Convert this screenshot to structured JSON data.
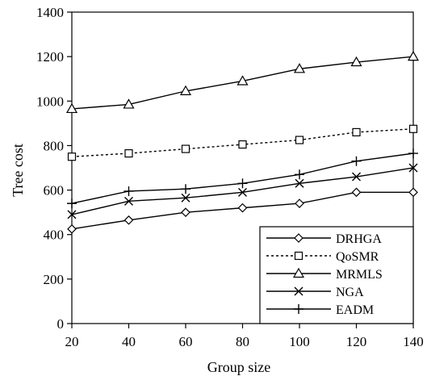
{
  "chart_data": {
    "type": "line",
    "title": "",
    "xlabel": "Group size",
    "ylabel": "Tree cost",
    "x": [
      20,
      40,
      60,
      80,
      100,
      120,
      140
    ],
    "xlim": [
      20,
      140
    ],
    "ylim": [
      0,
      1400
    ],
    "xticks": [
      "20",
      "40",
      "60",
      "80",
      "100",
      "120",
      "140"
    ],
    "yticks": [
      "0",
      "200",
      "400",
      "600",
      "800",
      "1000",
      "1200",
      "1400"
    ],
    "grid": false,
    "legend_position": "bottom-right",
    "series": [
      {
        "name": "DRHGA",
        "marker": "diamond",
        "dash": "solid",
        "values": [
          425,
          465,
          500,
          520,
          540,
          590,
          590
        ]
      },
      {
        "name": "QoSMR",
        "marker": "square",
        "dash": "dotted",
        "values": [
          750,
          765,
          785,
          805,
          825,
          860,
          875
        ]
      },
      {
        "name": "MRMLS",
        "marker": "triangle",
        "dash": "solid",
        "values": [
          965,
          985,
          1045,
          1090,
          1145,
          1175,
          1200
        ]
      },
      {
        "name": "NGA",
        "marker": "x",
        "dash": "solid",
        "values": [
          490,
          550,
          565,
          590,
          630,
          660,
          700
        ]
      },
      {
        "name": "EADM",
        "marker": "plus",
        "dash": "solid",
        "values": [
          540,
          595,
          605,
          630,
          670,
          730,
          765
        ]
      }
    ]
  }
}
